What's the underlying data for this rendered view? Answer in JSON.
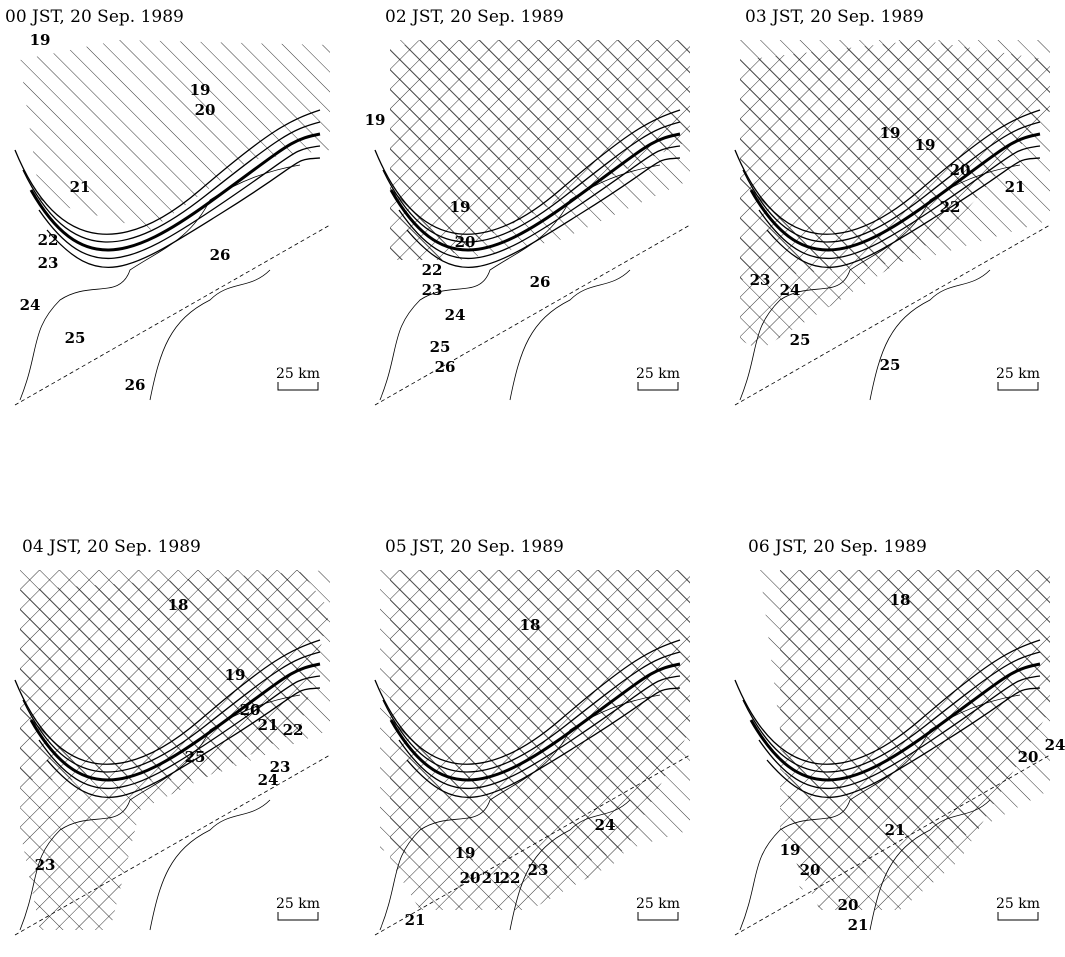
{
  "panels": [
    {
      "title": "00 JST, 20 Sep. 1989",
      "scale_label": "25 km",
      "contour_labels": [
        19,
        19,
        20,
        21,
        22,
        23,
        24,
        25,
        26,
        26
      ]
    },
    {
      "title": "02 JST, 20 Sep. 1989",
      "scale_label": "25 km",
      "contour_labels": [
        19,
        19,
        20,
        22,
        23,
        24,
        25,
        26,
        26
      ]
    },
    {
      "title": "03 JST, 20 Sep. 1989",
      "scale_label": "25 km",
      "contour_labels": [
        19,
        19,
        20,
        21,
        22,
        23,
        24,
        25,
        25
      ]
    },
    {
      "title": "04 JST, 20 Sep. 1989",
      "scale_label": "25 km",
      "contour_labels": [
        18,
        19,
        20,
        21,
        22,
        23,
        24,
        25,
        23
      ]
    },
    {
      "title": "05 JST, 20 Sep. 1989",
      "scale_label": "25 km",
      "contour_labels": [
        18,
        19,
        20,
        21,
        22,
        23,
        24,
        21
      ]
    },
    {
      "title": "06 JST, 20 Sep. 1989",
      "scale_label": "25 km",
      "contour_labels": [
        18,
        19,
        20,
        21,
        20,
        21,
        24,
        20
      ]
    }
  ]
}
